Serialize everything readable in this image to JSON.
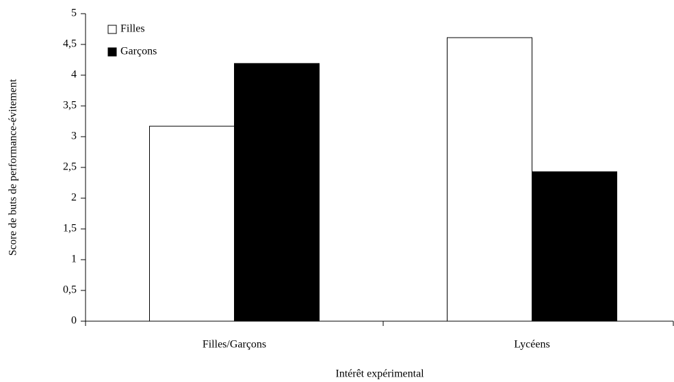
{
  "chart_data": {
    "type": "bar",
    "x_label": "Intérêt expérimental",
    "y_label": "Score de buts de performance-évitement",
    "categories": [
      "Filles/Garçons",
      "Lycéens"
    ],
    "series": [
      {
        "name": "Filles",
        "color": "#ffffff",
        "values": [
          3.17,
          4.61
        ]
      },
      {
        "name": "Garçons",
        "color": "#000000",
        "values": [
          4.19,
          2.43
        ]
      }
    ],
    "ylim": [
      0,
      5
    ],
    "yticks": [
      0,
      {
        "value": 0.5,
        "label": "0,5"
      },
      1,
      {
        "value": 1.5,
        "label": "1,5"
      },
      2,
      {
        "value": 2.5,
        "label": "2,5"
      },
      3,
      {
        "value": 3.5,
        "label": "3,5"
      },
      4,
      {
        "value": 4.5,
        "label": "4,5"
      },
      5
    ],
    "legend": "top-left"
  }
}
